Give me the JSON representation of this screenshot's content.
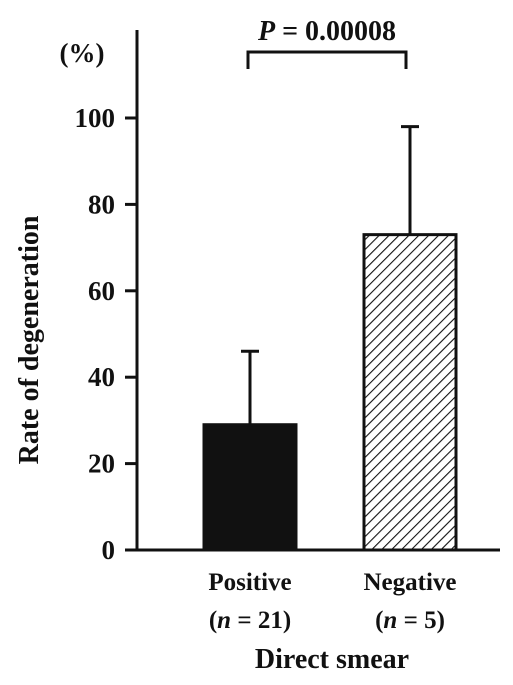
{
  "chart_data": {
    "type": "bar",
    "categories": [
      "Positive",
      "Negative"
    ],
    "category_sublabels": [
      {
        "prefix": "(",
        "var": "n",
        "rest": " = 21)"
      },
      {
        "prefix": "(",
        "var": "n",
        "rest": " = 5)"
      }
    ],
    "values": [
      29,
      73
    ],
    "error_upper": [
      46,
      98
    ],
    "fills": [
      "solid",
      "hatched"
    ],
    "ylabel": "Rate of degeneration",
    "yunit": "(%)",
    "xlabel": "Direct smear",
    "ylim": [
      0,
      100
    ],
    "yticks": [
      0,
      20,
      40,
      60,
      80,
      100
    ],
    "ytick_labels": [
      "0",
      "20",
      "40",
      "60",
      "80",
      "100"
    ],
    "annotation": {
      "var": "P",
      "rest": " = 0.00008"
    },
    "grid": false,
    "colors": {
      "bar": "#111111",
      "axis": "#111111"
    }
  }
}
